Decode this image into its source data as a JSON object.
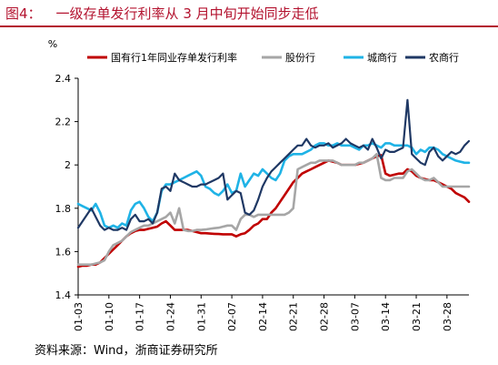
{
  "figure": {
    "label": "图4：",
    "title": "一级存单发行利率从 3 月中旬开始同步走低",
    "source": "资料来源：Wind，浙商证券研究所"
  },
  "chart_data": {
    "type": "line",
    "title": "",
    "xlabel": "",
    "ylabel": "%",
    "ylim": [
      1.4,
      2.4
    ],
    "yticks": [
      1.4,
      1.6,
      1.8,
      2.0,
      2.2,
      2.4
    ],
    "ytick_labels": [
      "1.4",
      "1.6",
      "1.8",
      "2",
      "2.2",
      "2.4"
    ],
    "xlim": [
      0,
      89
    ],
    "x_ticks": [
      {
        "x": 0,
        "label": "01-03"
      },
      {
        "x": 7,
        "label": "01-10"
      },
      {
        "x": 14,
        "label": "01-17"
      },
      {
        "x": 21,
        "label": "01-24"
      },
      {
        "x": 28,
        "label": "01-31"
      },
      {
        "x": 35,
        "label": "02-07"
      },
      {
        "x": 42,
        "label": "02-14"
      },
      {
        "x": 49,
        "label": "02-21"
      },
      {
        "x": 56,
        "label": "02-28"
      },
      {
        "x": 63,
        "label": "03-07"
      },
      {
        "x": 70,
        "label": "03-14"
      },
      {
        "x": 77,
        "label": "03-21"
      },
      {
        "x": 84,
        "label": "03-28"
      }
    ],
    "grid": false,
    "legend_position": "top",
    "series": [
      {
        "name": "国有行1年同业存单发行利率",
        "color": "#c00000",
        "x": [
          0,
          1,
          2,
          3,
          4,
          5,
          6,
          7,
          8,
          9,
          10,
          11,
          12,
          13,
          14,
          15,
          16,
          17,
          18,
          19,
          20,
          21,
          22,
          23,
          24,
          25,
          26,
          27,
          28,
          29,
          30,
          31,
          32,
          33,
          34,
          35,
          36,
          37,
          38,
          39,
          40,
          41,
          42,
          43,
          44,
          45,
          46,
          47,
          48,
          49,
          50,
          51,
          52,
          53,
          54,
          55,
          56,
          57,
          58,
          59,
          60,
          61,
          62,
          63,
          64,
          65,
          66,
          67,
          68,
          69,
          70,
          71,
          72,
          73,
          74,
          75,
          76,
          77,
          78,
          79,
          80,
          81,
          82,
          83,
          84,
          85,
          86,
          87,
          88,
          89
        ],
        "values": [
          1.53,
          1.535,
          1.535,
          1.54,
          1.54,
          1.55,
          1.57,
          1.59,
          1.61,
          1.63,
          1.65,
          1.67,
          1.685,
          1.695,
          1.7,
          1.7,
          1.705,
          1.71,
          1.715,
          1.73,
          1.74,
          1.72,
          1.7,
          1.7,
          1.7,
          1.7,
          1.695,
          1.69,
          1.685,
          1.685,
          1.683,
          1.682,
          1.681,
          1.68,
          1.68,
          1.68,
          1.67,
          1.68,
          1.685,
          1.7,
          1.72,
          1.73,
          1.75,
          1.75,
          1.78,
          1.8,
          1.83,
          1.86,
          1.89,
          1.92,
          1.94,
          1.96,
          1.97,
          1.98,
          1.99,
          2.0,
          2.01,
          2.02,
          2.015,
          2.01,
          2.0,
          2.0,
          2.0,
          2.0,
          2.005,
          2.01,
          2.02,
          2.03,
          2.04,
          2.045,
          1.96,
          1.95,
          1.955,
          1.96,
          1.96,
          1.98,
          1.97,
          1.95,
          1.94,
          1.935,
          1.93,
          1.93,
          1.92,
          1.91,
          1.9,
          1.89,
          1.87,
          1.86,
          1.85,
          1.83
        ]
      },
      {
        "name": "股份行",
        "color": "#a6a6a6",
        "x": [
          0,
          1,
          2,
          3,
          4,
          5,
          6,
          7,
          8,
          9,
          10,
          11,
          12,
          13,
          14,
          15,
          16,
          17,
          18,
          19,
          20,
          21,
          22,
          23,
          24,
          25,
          26,
          27,
          28,
          29,
          30,
          31,
          32,
          33,
          34,
          35,
          36,
          37,
          38,
          39,
          40,
          41,
          42,
          43,
          44,
          45,
          46,
          47,
          48,
          49,
          50,
          51,
          52,
          53,
          54,
          55,
          56,
          57,
          58,
          59,
          60,
          61,
          62,
          63,
          64,
          65,
          66,
          67,
          68,
          69,
          70,
          71,
          72,
          73,
          74,
          75,
          76,
          77,
          78,
          79,
          80,
          81,
          82,
          83,
          84,
          85,
          86,
          87,
          88,
          89
        ],
        "values": [
          1.54,
          1.54,
          1.54,
          1.54,
          1.545,
          1.55,
          1.56,
          1.6,
          1.63,
          1.64,
          1.65,
          1.67,
          1.69,
          1.7,
          1.71,
          1.72,
          1.72,
          1.73,
          1.74,
          1.75,
          1.76,
          1.78,
          1.73,
          1.8,
          1.7,
          1.695,
          1.695,
          1.7,
          1.7,
          1.702,
          1.705,
          1.708,
          1.71,
          1.715,
          1.72,
          1.72,
          1.7,
          1.75,
          1.77,
          1.77,
          1.76,
          1.77,
          1.77,
          1.77,
          1.77,
          1.77,
          1.77,
          1.77,
          1.78,
          1.8,
          1.98,
          1.99,
          2.0,
          2.01,
          2.01,
          2.02,
          2.02,
          2.02,
          2.02,
          2.01,
          2.0,
          2.0,
          2.0,
          2.0,
          2.01,
          2.01,
          2.02,
          2.03,
          2.05,
          1.94,
          1.93,
          1.93,
          1.94,
          1.94,
          1.94,
          1.97,
          1.98,
          1.96,
          1.94,
          1.93,
          1.93,
          1.94,
          1.92,
          1.9,
          1.9,
          1.9,
          1.9,
          1.9,
          1.9,
          1.9
        ]
      },
      {
        "name": "城商行",
        "color": "#1fb3e6",
        "x": [
          0,
          1,
          2,
          3,
          4,
          5,
          6,
          7,
          8,
          9,
          10,
          11,
          12,
          13,
          14,
          15,
          16,
          17,
          18,
          19,
          20,
          21,
          22,
          23,
          24,
          25,
          26,
          27,
          28,
          29,
          30,
          31,
          32,
          33,
          34,
          35,
          36,
          37,
          38,
          39,
          40,
          41,
          42,
          43,
          44,
          45,
          46,
          47,
          48,
          49,
          50,
          51,
          52,
          53,
          54,
          55,
          56,
          57,
          58,
          59,
          60,
          61,
          62,
          63,
          64,
          65,
          66,
          67,
          68,
          69,
          70,
          71,
          72,
          73,
          74,
          75,
          76,
          77,
          78,
          79,
          80,
          81,
          82,
          83,
          84,
          85,
          86,
          87,
          88,
          89
        ],
        "values": [
          1.82,
          1.81,
          1.8,
          1.79,
          1.82,
          1.78,
          1.72,
          1.71,
          1.72,
          1.71,
          1.73,
          1.72,
          1.79,
          1.82,
          1.83,
          1.8,
          1.76,
          1.74,
          1.78,
          1.88,
          1.91,
          1.91,
          1.92,
          1.93,
          1.94,
          1.95,
          1.96,
          1.97,
          1.95,
          1.9,
          1.89,
          1.87,
          1.86,
          1.88,
          1.91,
          1.87,
          1.88,
          1.96,
          1.9,
          1.93,
          1.96,
          1.95,
          1.98,
          1.96,
          1.94,
          1.93,
          1.96,
          2.02,
          2.04,
          2.05,
          2.05,
          2.05,
          2.06,
          2.07,
          2.09,
          2.1,
          2.1,
          2.09,
          2.09,
          2.1,
          2.09,
          2.09,
          2.09,
          2.08,
          2.07,
          2.09,
          2.09,
          2.1,
          2.09,
          2.08,
          2.1,
          2.1,
          2.09,
          2.09,
          2.09,
          2.09,
          2.08,
          2.05,
          2.07,
          2.06,
          2.08,
          2.08,
          2.07,
          2.05,
          2.04,
          2.03,
          2.02,
          2.015,
          2.01,
          2.01
        ]
      },
      {
        "name": "农商行",
        "color": "#1f3864",
        "x": [
          0,
          1,
          2,
          3,
          4,
          5,
          6,
          7,
          8,
          9,
          10,
          11,
          12,
          13,
          14,
          15,
          16,
          17,
          18,
          19,
          20,
          21,
          22,
          23,
          24,
          25,
          26,
          27,
          28,
          29,
          30,
          31,
          32,
          33,
          34,
          35,
          36,
          37,
          38,
          39,
          40,
          41,
          42,
          43,
          44,
          45,
          46,
          47,
          48,
          49,
          50,
          51,
          52,
          53,
          54,
          55,
          56,
          57,
          58,
          59,
          60,
          61,
          62,
          63,
          64,
          65,
          66,
          67,
          68,
          69,
          70,
          71,
          72,
          73,
          74,
          75,
          76,
          77,
          78,
          79,
          80,
          81,
          82,
          83,
          84,
          85,
          86,
          87,
          88,
          89
        ],
        "values": [
          1.71,
          1.74,
          1.77,
          1.8,
          1.76,
          1.72,
          1.7,
          1.71,
          1.7,
          1.7,
          1.71,
          1.7,
          1.75,
          1.77,
          1.74,
          1.74,
          1.75,
          1.73,
          1.78,
          1.89,
          1.9,
          1.88,
          1.96,
          1.93,
          1.92,
          1.91,
          1.9,
          1.9,
          1.91,
          1.91,
          1.92,
          1.93,
          1.94,
          1.96,
          1.84,
          1.86,
          1.88,
          1.87,
          1.78,
          1.77,
          1.79,
          1.84,
          1.9,
          1.94,
          1.97,
          1.99,
          2.01,
          2.03,
          2.05,
          2.07,
          2.09,
          2.09,
          2.12,
          2.09,
          2.08,
          2.09,
          2.09,
          2.1,
          2.08,
          2.09,
          2.1,
          2.12,
          2.1,
          2.09,
          2.08,
          2.09,
          2.07,
          2.12,
          2.08,
          2.03,
          2.07,
          2.06,
          2.06,
          2.07,
          2.08,
          2.3,
          2.05,
          2.03,
          2.01,
          2.0,
          2.06,
          2.08,
          2.04,
          2.02,
          2.04,
          2.06,
          2.05,
          2.06,
          2.09,
          2.11
        ]
      }
    ]
  }
}
